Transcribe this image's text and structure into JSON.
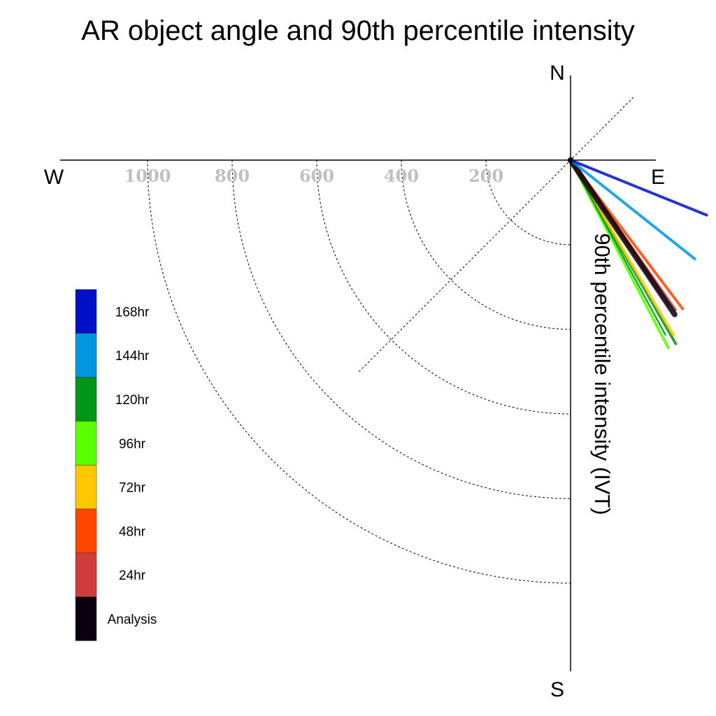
{
  "chart_data": {
    "type": "polar-line",
    "title": "AR object angle and 90th percentile intensity",
    "axis_label": "90th percentile intensity (IVT)",
    "compass": {
      "north": "N",
      "south": "S",
      "east": "E",
      "west": "W"
    },
    "radial_ticks": [
      200,
      400,
      600,
      800,
      1000
    ],
    "rlim": [
      0,
      1000
    ],
    "grid": true,
    "legend_position": "left",
    "legend": [
      {
        "label": "168hr",
        "color": "#0010c8"
      },
      {
        "label": "144hr",
        "color": "#0096e0"
      },
      {
        "label": "120hr",
        "color": "#009618"
      },
      {
        "label": "96hr",
        "color": "#5aff00"
      },
      {
        "label": "72hr",
        "color": "#ffc800"
      },
      {
        "label": "48hr",
        "color": "#ff4600"
      },
      {
        "label": "24hr",
        "color": "#d03c3c"
      },
      {
        "label": "Analysis",
        "color": "#0a0010"
      }
    ],
    "series": [
      {
        "name": "120hr",
        "color": "#009618",
        "angle_deg": 150.2,
        "intensity": 500,
        "width": 4
      },
      {
        "name": "96hr",
        "color": "#5aff00",
        "angle_deg": 152.5,
        "intensity": 500,
        "width": 4
      },
      {
        "name": "72hr",
        "color": "#ffc800",
        "angle_deg": 149.5,
        "intensity": 480,
        "width": 4
      },
      {
        "name": "120hr",
        "color": "#009618",
        "angle_deg": 151.5,
        "intensity": 470,
        "width": 2.5
      },
      {
        "name": "24hr",
        "color": "#d03c3c",
        "angle_deg": 145.0,
        "intensity": 432,
        "width": 4
      },
      {
        "name": "48hr",
        "color": "#ff4600",
        "angle_deg": 143.0,
        "intensity": 440,
        "width": 4
      },
      {
        "name": "48hr",
        "color": "#ff4600",
        "angle_deg": 146.0,
        "intensity": 415,
        "width": 3
      },
      {
        "name": "Analysis",
        "color": "#0a0010",
        "angle_deg": 146.0,
        "intensity": 440,
        "width": 8
      },
      {
        "name": "144hr",
        "color": "#0096e0",
        "angle_deg": 128.5,
        "intensity": 375,
        "width": 4
      },
      {
        "name": "168hr",
        "color": "#0010c8",
        "angle_deg": 112.0,
        "intensity": 347,
        "width": 4
      }
    ]
  }
}
